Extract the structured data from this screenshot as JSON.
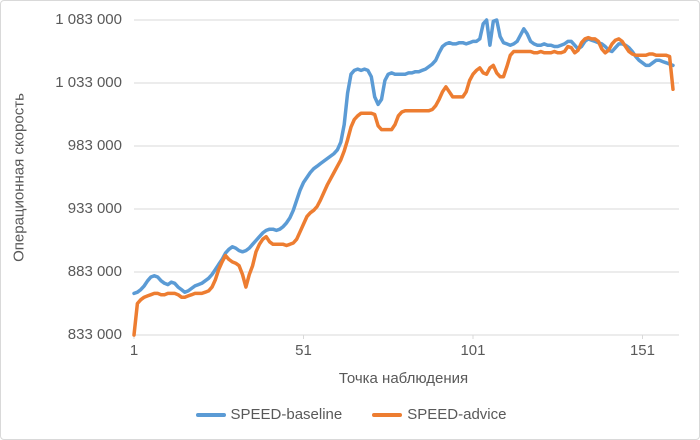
{
  "colors": {
    "baseline_blue": "#5B9BD5",
    "advice_orange": "#ED7D31",
    "grid": "#D9D9D9",
    "axis_text": "#595959",
    "background": "#FFFFFF"
  },
  "chart_data": {
    "type": "line",
    "title": "",
    "xlabel": "Точка наблюдения",
    "ylabel": "Операционная скорость",
    "x_ticks": [
      1,
      51,
      101,
      151
    ],
    "y_ticks": [
      "1 083 000",
      "1 033 000",
      "983 000",
      "933 000",
      "883 000",
      "833 000"
    ],
    "ylim": [
      833000,
      1083000
    ],
    "xlim": [
      1,
      160
    ],
    "grid": true,
    "legend_position": "bottom",
    "series": [
      {
        "name": "SPEED-baseline",
        "color": "#5B9BD5",
        "values": [
          866000,
          867000,
          869000,
          872000,
          876000,
          879000,
          880000,
          879000,
          876000,
          874000,
          873000,
          875000,
          874000,
          871000,
          869000,
          867000,
          868000,
          870000,
          872000,
          873000,
          874000,
          876000,
          878000,
          881000,
          885000,
          889000,
          893000,
          898000,
          901000,
          903000,
          902000,
          900000,
          899000,
          900000,
          902000,
          905000,
          908000,
          911000,
          914000,
          916000,
          917000,
          917000,
          916000,
          917000,
          919000,
          922000,
          926000,
          932000,
          940000,
          948000,
          954000,
          958000,
          962000,
          965000,
          967000,
          969000,
          971000,
          973000,
          975000,
          977000,
          980000,
          986000,
          1000000,
          1025000,
          1040000,
          1043000,
          1044000,
          1043000,
          1044000,
          1043000,
          1038000,
          1022000,
          1016000,
          1020000,
          1035000,
          1040000,
          1041000,
          1040000,
          1040000,
          1040000,
          1040000,
          1041000,
          1041000,
          1042000,
          1042000,
          1043000,
          1044000,
          1046000,
          1048000,
          1051000,
          1057000,
          1062000,
          1064000,
          1065000,
          1064000,
          1064000,
          1065000,
          1065000,
          1064000,
          1065000,
          1066000,
          1066000,
          1068000,
          1080000,
          1083000,
          1063000,
          1082000,
          1083000,
          1070000,
          1065000,
          1064000,
          1063000,
          1064000,
          1066000,
          1071000,
          1076000,
          1072000,
          1066000,
          1064000,
          1063000,
          1063000,
          1064000,
          1063000,
          1063000,
          1062000,
          1062000,
          1063000,
          1064000,
          1066000,
          1066000,
          1063000,
          1060000,
          1062000,
          1066000,
          1068000,
          1067000,
          1066000,
          1065000,
          1064000,
          1062000,
          1059000,
          1058000,
          1061000,
          1064000,
          1064000,
          1063000,
          1061000,
          1058000,
          1054000,
          1051000,
          1049000,
          1047000,
          1047000,
          1049000,
          1051000,
          1051000,
          1050000,
          1049000,
          1048000,
          1047000
        ]
      },
      {
        "name": "SPEED-advice",
        "color": "#ED7D31",
        "values": [
          833000,
          858000,
          861000,
          863000,
          864000,
          865000,
          866000,
          866000,
          865000,
          865000,
          866000,
          866000,
          866000,
          865000,
          863000,
          863000,
          864000,
          865000,
          866000,
          866000,
          866000,
          867000,
          868000,
          871000,
          877000,
          885000,
          891000,
          896000,
          893000,
          891000,
          890000,
          888000,
          881000,
          871000,
          881000,
          888000,
          899000,
          905000,
          909000,
          911000,
          907000,
          905000,
          905000,
          905000,
          905000,
          904000,
          905000,
          906000,
          909000,
          915000,
          921000,
          927000,
          930000,
          932000,
          935000,
          940000,
          946000,
          952000,
          957000,
          962000,
          967000,
          972000,
          979000,
          988000,
          998000,
          1004000,
          1007000,
          1009000,
          1009000,
          1009000,
          1009000,
          1008000,
          999000,
          996000,
          996000,
          996000,
          996000,
          1000000,
          1007000,
          1010000,
          1011000,
          1011000,
          1011000,
          1011000,
          1011000,
          1011000,
          1011000,
          1011000,
          1012000,
          1015000,
          1020000,
          1026000,
          1030000,
          1026000,
          1022000,
          1022000,
          1022000,
          1022000,
          1026000,
          1035000,
          1040000,
          1043000,
          1045000,
          1041000,
          1040000,
          1045000,
          1047000,
          1041000,
          1038000,
          1038000,
          1046000,
          1055000,
          1058000,
          1058000,
          1058000,
          1058000,
          1058000,
          1058000,
          1057000,
          1057000,
          1058000,
          1057000,
          1057000,
          1057000,
          1058000,
          1057000,
          1057000,
          1058000,
          1062000,
          1061000,
          1057000,
          1059000,
          1065000,
          1068000,
          1069000,
          1068000,
          1068000,
          1066000,
          1060000,
          1057000,
          1059000,
          1064000,
          1067000,
          1068000,
          1066000,
          1062000,
          1058000,
          1056000,
          1055000,
          1055000,
          1055000,
          1055000,
          1056000,
          1056000,
          1055000,
          1055000,
          1055000,
          1055000,
          1054000,
          1028000
        ]
      }
    ]
  }
}
